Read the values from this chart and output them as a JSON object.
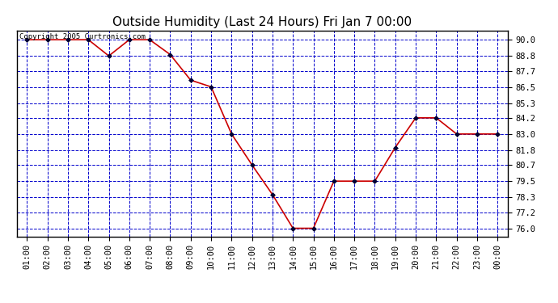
{
  "title": "Outside Humidity (Last 24 Hours) Fri Jan 7 00:00",
  "copyright_text": "Copyright 2005 Curtronics.com",
  "x_labels": [
    "01:00",
    "02:00",
    "03:00",
    "04:00",
    "05:00",
    "06:00",
    "07:00",
    "08:00",
    "09:00",
    "10:00",
    "11:00",
    "12:00",
    "13:00",
    "14:00",
    "15:00",
    "16:00",
    "17:00",
    "18:00",
    "19:00",
    "20:00",
    "21:00",
    "22:00",
    "23:00",
    "00:00"
  ],
  "y_values": [
    90.0,
    90.0,
    90.0,
    90.0,
    88.8,
    90.0,
    90.0,
    88.9,
    87.0,
    86.5,
    83.0,
    80.7,
    78.5,
    76.0,
    76.0,
    79.5,
    79.5,
    79.5,
    82.0,
    84.2,
    84.2,
    83.0,
    83.0,
    83.0
  ],
  "ylim": [
    75.4,
    90.7
  ],
  "yticks": [
    76.0,
    77.2,
    78.3,
    79.5,
    80.7,
    81.8,
    83.0,
    84.2,
    85.3,
    86.5,
    87.7,
    88.8,
    90.0
  ],
  "line_color": "#cc0000",
  "marker_color": "#000033",
  "bg_color": "#ffffff",
  "plot_bg_color": "#ffffff",
  "grid_color": "#0000cc",
  "title_color": "#000000",
  "title_fontsize": 11,
  "tick_fontsize": 7.5,
  "copyright_fontsize": 6.5,
  "border_color": "#000000"
}
